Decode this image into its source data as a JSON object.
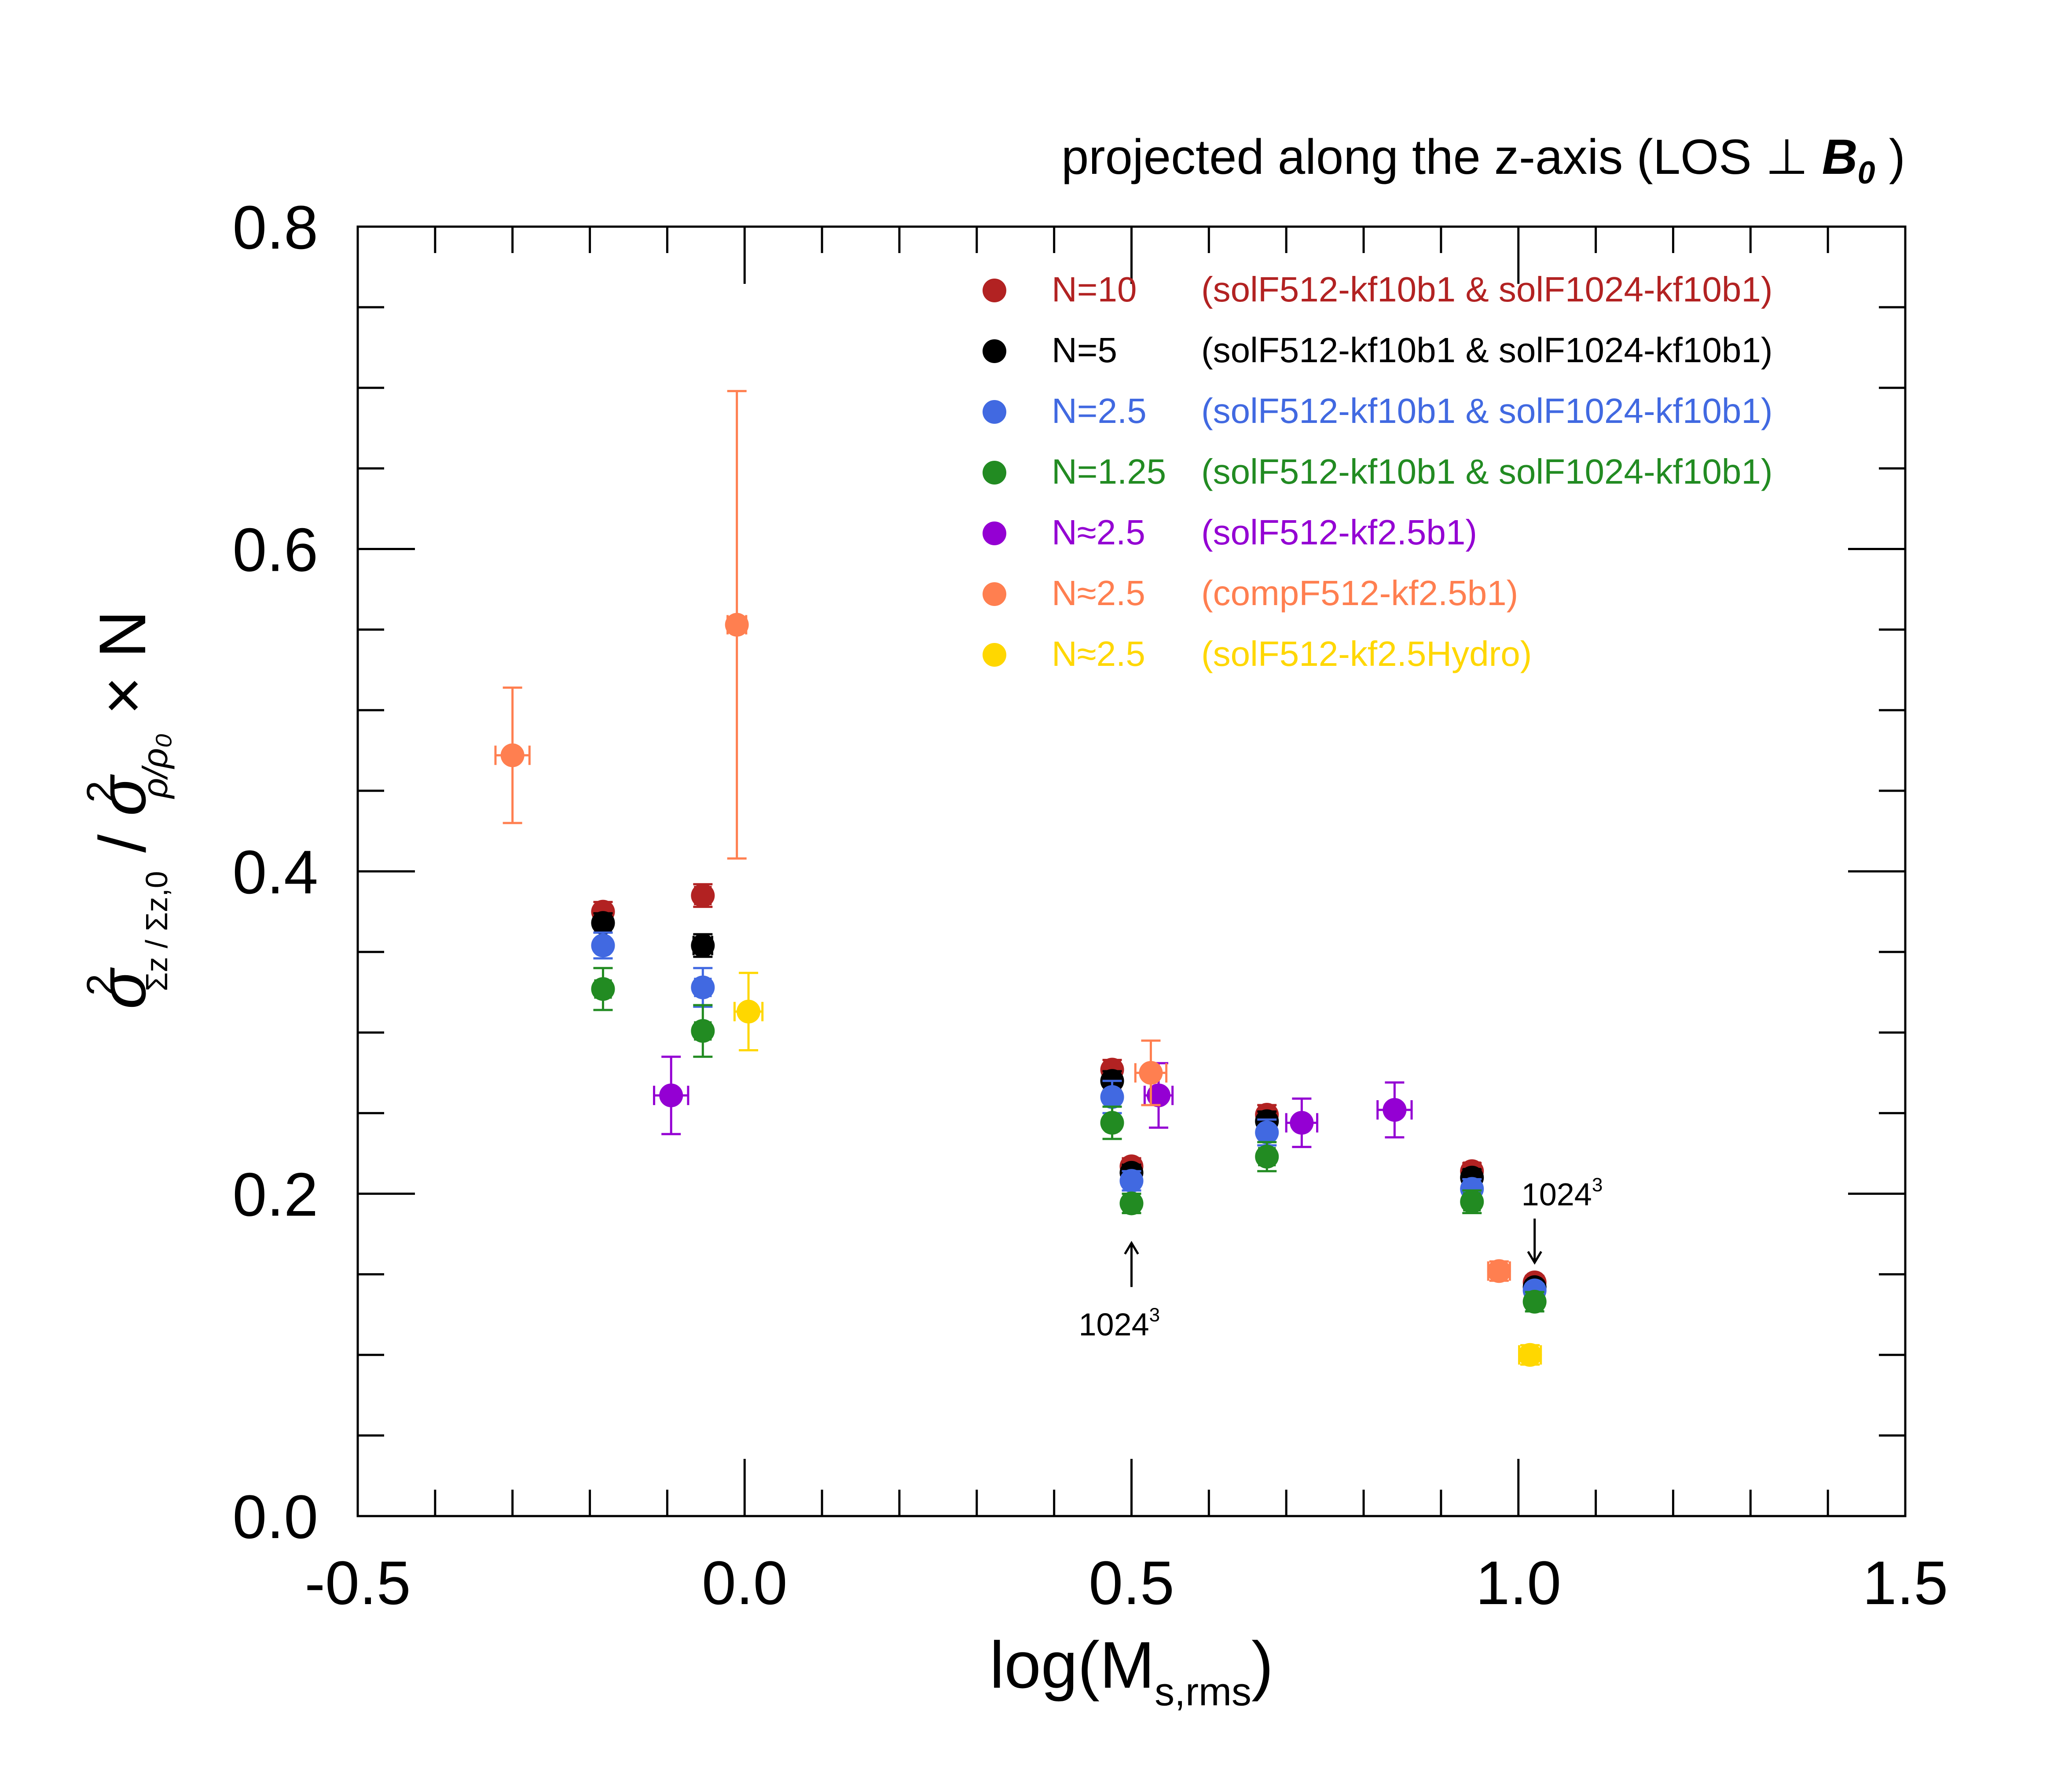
{
  "chart_data": {
    "type": "scatter",
    "title": "projected along the z-axis (LOS ⊥ B₀)",
    "title_parts": {
      "main": "projected along the z-axis (LOS ⊥ ",
      "bold": "B",
      "sub": "0",
      "close": " )"
    },
    "xlabel": "log(M_s,rms)",
    "xlabel_parts": {
      "main": "log(M",
      "sub": "s,rms",
      "close": ")"
    },
    "ylabel": "σ²_{Σz/Σz,0} / σ²_{ρ/ρ0} × N",
    "ylabel_parts": {
      "sigma": "σ",
      "sq": "2",
      "sub1": "Σz / Σz,0",
      "slash": "/",
      "sub2": "ρ/ρ₀",
      "times": "× N"
    },
    "xlim": [
      -0.5,
      1.5
    ],
    "ylim": [
      0.0,
      0.8
    ],
    "x_ticks": [
      "-0.5",
      "0.0",
      "0.5",
      "1.0",
      "1.5"
    ],
    "y_ticks": [
      "0.0",
      "0.2",
      "0.4",
      "0.6",
      "0.8"
    ],
    "grid": false,
    "legend_position": "top-right",
    "series": [
      {
        "name": "N=10",
        "run": "(solF512-kf10b1 & solF1024-kf10b1)",
        "color": "#b22222",
        "points": [
          {
            "x": -0.183,
            "y": 0.375,
            "yerr": 0.006,
            "xerr": 0.008
          },
          {
            "x": -0.054,
            "y": 0.385,
            "yerr": 0.007,
            "xerr": 0.01
          },
          {
            "x": 0.475,
            "y": 0.277,
            "yerr": 0.006,
            "xerr": 0.01
          },
          {
            "x": 0.5,
            "y": 0.217,
            "yerr": 0.005,
            "xerr": 0.008
          },
          {
            "x": 0.675,
            "y": 0.249,
            "yerr": 0.006,
            "xerr": 0.01
          },
          {
            "x": 0.94,
            "y": 0.214,
            "yerr": 0.005,
            "xerr": 0.01
          },
          {
            "x": 1.021,
            "y": 0.145,
            "yerr": 0.004,
            "xerr": 0.008
          }
        ]
      },
      {
        "name": "N=5",
        "run": "(solF512-kf10b1 & solF1024-kf10b1)",
        "color": "#000000",
        "points": [
          {
            "x": -0.183,
            "y": 0.368,
            "yerr": 0.006,
            "xerr": 0.01
          },
          {
            "x": -0.054,
            "y": 0.354,
            "yerr": 0.007,
            "xerr": 0.012
          },
          {
            "x": 0.475,
            "y": 0.27,
            "yerr": 0.006,
            "xerr": 0.01
          },
          {
            "x": 0.5,
            "y": 0.213,
            "yerr": 0.005,
            "xerr": 0.008
          },
          {
            "x": 0.675,
            "y": 0.245,
            "yerr": 0.006,
            "xerr": 0.01
          },
          {
            "x": 0.94,
            "y": 0.21,
            "yerr": 0.005,
            "xerr": 0.01
          },
          {
            "x": 1.021,
            "y": 0.142,
            "yerr": 0.004,
            "xerr": 0.008
          }
        ]
      },
      {
        "name": "N=2.5",
        "run": "(solF512-kf10b1 & solF1024-kf10b1)",
        "color": "#4169e1",
        "points": [
          {
            "x": -0.183,
            "y": 0.354,
            "yerr": 0.008,
            "xerr": 0.008
          },
          {
            "x": -0.054,
            "y": 0.328,
            "yerr": 0.012,
            "xerr": 0.01
          },
          {
            "x": 0.475,
            "y": 0.26,
            "yerr": 0.01,
            "xerr": 0.008
          },
          {
            "x": 0.5,
            "y": 0.208,
            "yerr": 0.006,
            "xerr": 0.008
          },
          {
            "x": 0.675,
            "y": 0.238,
            "yerr": 0.008,
            "xerr": 0.008
          },
          {
            "x": 0.94,
            "y": 0.203,
            "yerr": 0.006,
            "xerr": 0.01
          },
          {
            "x": 1.021,
            "y": 0.14,
            "yerr": 0.004,
            "xerr": 0.008
          }
        ]
      },
      {
        "name": "N=1.25",
        "run": "(solF512-kf10b1 & solF1024-kf10b1)",
        "color": "#228b22",
        "points": [
          {
            "x": -0.183,
            "y": 0.327,
            "yerr": 0.013,
            "xerr": 0.01
          },
          {
            "x": -0.054,
            "y": 0.301,
            "yerr": 0.016,
            "xerr": 0.01
          },
          {
            "x": 0.475,
            "y": 0.244,
            "yerr": 0.01,
            "xerr": 0.008
          },
          {
            "x": 0.5,
            "y": 0.194,
            "yerr": 0.006,
            "xerr": 0.01
          },
          {
            "x": 0.675,
            "y": 0.223,
            "yerr": 0.009,
            "xerr": 0.01
          },
          {
            "x": 0.94,
            "y": 0.195,
            "yerr": 0.007,
            "xerr": 0.01
          },
          {
            "x": 1.021,
            "y": 0.133,
            "yerr": 0.006,
            "xerr": 0.01
          }
        ]
      },
      {
        "name": "N≈2.5",
        "run": "(solF512-kf2.5b1)",
        "color": "#9400d3",
        "points": [
          {
            "x": -0.095,
            "y": 0.261,
            "yerr": 0.024,
            "xerr": 0.022
          },
          {
            "x": 0.535,
            "y": 0.261,
            "yerr": 0.02,
            "xerr": 0.018
          },
          {
            "x": 0.72,
            "y": 0.244,
            "yerr": 0.015,
            "xerr": 0.02
          },
          {
            "x": 0.84,
            "y": 0.252,
            "yerr": 0.017,
            "xerr": 0.022
          }
        ]
      },
      {
        "name": "N≈2.5",
        "run": "(compF512-kf2.5b1)",
        "color": "#ff7f50",
        "points": [
          {
            "x": -0.3,
            "y": 0.472,
            "yerr": 0.042,
            "xerr": 0.022
          },
          {
            "x": -0.01,
            "y": 0.553,
            "yerr": 0.145,
            "xerr": 0.012
          },
          {
            "x": 0.525,
            "y": 0.275,
            "yerr": 0.02,
            "xerr": 0.02
          },
          {
            "x": 0.975,
            "y": 0.152,
            "yerr": 0.006,
            "xerr": 0.014
          }
        ]
      },
      {
        "name": "N≈2.5",
        "run": "(solF512-kf2.5Hydro)",
        "color": "#ffd700",
        "points": [
          {
            "x": 0.005,
            "y": 0.313,
            "yerr": 0.024,
            "xerr": 0.018
          },
          {
            "x": 1.015,
            "y": 0.1,
            "yerr": 0.006,
            "xerr": 0.014
          }
        ]
      }
    ],
    "annotations": [
      {
        "text": "1024",
        "sup": "3",
        "arrow": "up",
        "x": 0.5,
        "y": 0.194
      },
      {
        "text": "1024",
        "sup": "3",
        "arrow": "down",
        "x": 1.021,
        "y": 0.145
      }
    ]
  }
}
